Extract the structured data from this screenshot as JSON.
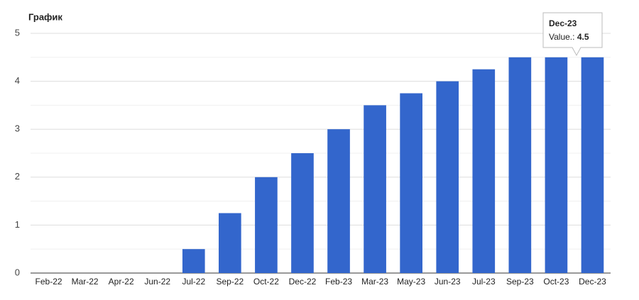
{
  "chart_data": {
    "type": "bar",
    "title": "График",
    "categories": [
      "Feb-22",
      "Mar-22",
      "Apr-22",
      "Jun-22",
      "Jul-22",
      "Sep-22",
      "Oct-22",
      "Dec-22",
      "Feb-23",
      "Mar-23",
      "May-23",
      "Jun-23",
      "Jul-23",
      "Sep-23",
      "Oct-23",
      "Dec-23"
    ],
    "values": [
      0,
      0,
      0,
      0,
      0.5,
      1.25,
      2,
      2.5,
      3,
      3.5,
      3.75,
      4,
      4.25,
      4.5,
      4.5,
      4.5
    ],
    "color": "#3366cc",
    "ylim": [
      0,
      5
    ],
    "yticks": [
      0,
      1,
      2,
      3,
      4,
      5
    ],
    "grid": true,
    "tooltip_label": "Value.:"
  }
}
